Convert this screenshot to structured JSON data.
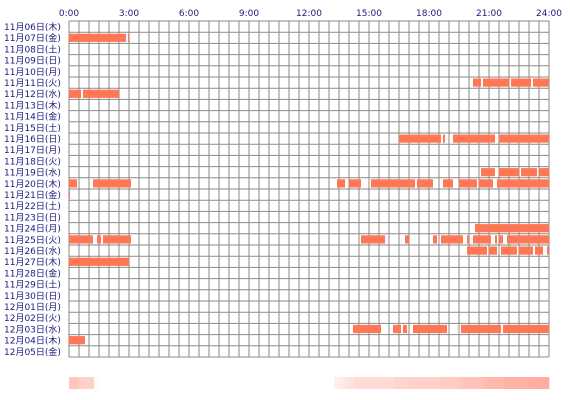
{
  "colors": {
    "grid": "#8a8a8a",
    "bar": "#ff7755",
    "label": "#1a1a7a",
    "heat_min": "#ffffff",
    "heat_max": "#ff9988"
  },
  "chart_data": {
    "type": "timeline",
    "hour_ticks": [
      "0:00",
      "3:00",
      "6:00",
      "9:00",
      "12:00",
      "15:00",
      "18:00",
      "21:00",
      "24:00"
    ],
    "days": [
      "11月06日(木)",
      "11月07日(金)",
      "11月08日(土)",
      "11月09日(日)",
      "11月10日(月)",
      "11月11日(火)",
      "11月12日(水)",
      "11月13日(木)",
      "11月14日(金)",
      "11月15日(土)",
      "11月16日(日)",
      "11月17日(月)",
      "11月18日(火)",
      "11月19日(水)",
      "11月20日(木)",
      "11月21日(金)",
      "11月22日(土)",
      "11月23日(日)",
      "11月24日(月)",
      "11月25日(火)",
      "11月26日(水)",
      "11月27日(木)",
      "11月28日(金)",
      "11月29日(土)",
      "11月30日(日)",
      "12月01日(月)",
      "12月02日(火)",
      "12月03日(水)",
      "12月04日(木)",
      "12月05日(金)"
    ],
    "activity": [
      {
        "day": 1,
        "spans": [
          [
            0,
            2.85
          ],
          [
            2.95,
            3.0
          ]
        ]
      },
      {
        "day": 5,
        "spans": [
          [
            20.2,
            20.6
          ],
          [
            20.7,
            22.0
          ],
          [
            22.1,
            23.1
          ],
          [
            23.2,
            24
          ]
        ]
      },
      {
        "day": 6,
        "spans": [
          [
            0,
            0.6
          ],
          [
            0.7,
            2.5
          ]
        ]
      },
      {
        "day": 10,
        "spans": [
          [
            16.5,
            18.6
          ],
          [
            18.7,
            18.8
          ],
          [
            19.2,
            21.3
          ],
          [
            21.5,
            24
          ]
        ]
      },
      {
        "day": 13,
        "spans": [
          [
            20.6,
            21.3
          ],
          [
            21.5,
            22.5
          ],
          [
            22.6,
            23.4
          ],
          [
            23.5,
            24
          ]
        ]
      },
      {
        "day": 14,
        "spans": [
          [
            0,
            0.4
          ],
          [
            1.2,
            3.1
          ],
          [
            13.4,
            13.8
          ],
          [
            14.0,
            14.6
          ],
          [
            15.1,
            17.3
          ],
          [
            17.4,
            18.2
          ],
          [
            18.7,
            19.2
          ],
          [
            19.5,
            20.4
          ],
          [
            20.5,
            21.2
          ],
          [
            21.4,
            24
          ]
        ]
      },
      {
        "day": 15,
        "spans": [
          [
            0,
            0.05
          ]
        ]
      },
      {
        "day": 18,
        "spans": [
          [
            20.3,
            24
          ]
        ]
      },
      {
        "day": 19,
        "spans": [
          [
            0,
            1.2
          ],
          [
            1.4,
            1.6
          ],
          [
            1.7,
            3.1
          ],
          [
            14.6,
            15.8
          ],
          [
            16.8,
            17.0
          ],
          [
            18.2,
            18.4
          ],
          [
            18.6,
            19.7
          ],
          [
            19.9,
            20.0
          ],
          [
            20.2,
            21.1
          ],
          [
            21.3,
            21.4
          ],
          [
            21.5,
            21.7
          ],
          [
            21.9,
            24
          ]
        ]
      },
      {
        "day": 20,
        "spans": [
          [
            19.9,
            20.9
          ],
          [
            21.0,
            21.4
          ],
          [
            21.6,
            22.4
          ],
          [
            22.5,
            23.2
          ],
          [
            23.3,
            23.7
          ],
          [
            23.9,
            24
          ]
        ]
      },
      {
        "day": 21,
        "spans": [
          [
            0,
            3.0
          ]
        ]
      },
      {
        "day": 27,
        "spans": [
          [
            14.2,
            15.6
          ],
          [
            16.2,
            16.6
          ],
          [
            16.7,
            16.9
          ],
          [
            17.2,
            18.9
          ],
          [
            19.6,
            21.6
          ],
          [
            21.7,
            24
          ]
        ]
      },
      {
        "day": 28,
        "spans": [
          [
            0,
            0.8
          ]
        ]
      }
    ],
    "heat_strip": [
      0.55,
      0.55,
      0.45,
      0.45,
      0.45,
      0.05,
      0.0,
      0.0,
      0.0,
      0.0,
      0.0,
      0.0,
      0.0,
      0.0,
      0.0,
      0.0,
      0.0,
      0.0,
      0.0,
      0.0,
      0.0,
      0.0,
      0.0,
      0.0,
      0.0,
      0.0,
      0.0,
      0.0,
      0.0,
      0.0,
      0.0,
      0.0,
      0.0,
      0.0,
      0.0,
      0.0,
      0.0,
      0.0,
      0.0,
      0.0,
      0.0,
      0.0,
      0.0,
      0.0,
      0.0,
      0.0,
      0.0,
      0.0,
      0.0,
      0.0,
      0.0,
      0.0,
      0.0,
      0.15,
      0.2,
      0.25,
      0.3,
      0.35,
      0.35,
      0.35,
      0.35,
      0.35,
      0.35,
      0.35,
      0.35,
      0.4,
      0.4,
      0.4,
      0.45,
      0.45,
      0.45,
      0.45,
      0.45,
      0.45,
      0.5,
      0.5,
      0.5,
      0.5,
      0.55,
      0.6,
      0.6,
      0.6,
      0.6,
      0.65,
      0.7,
      0.7,
      0.7,
      0.75,
      0.75,
      0.75,
      0.75,
      0.75,
      0.8,
      0.8,
      0.8,
      0.8
    ]
  }
}
